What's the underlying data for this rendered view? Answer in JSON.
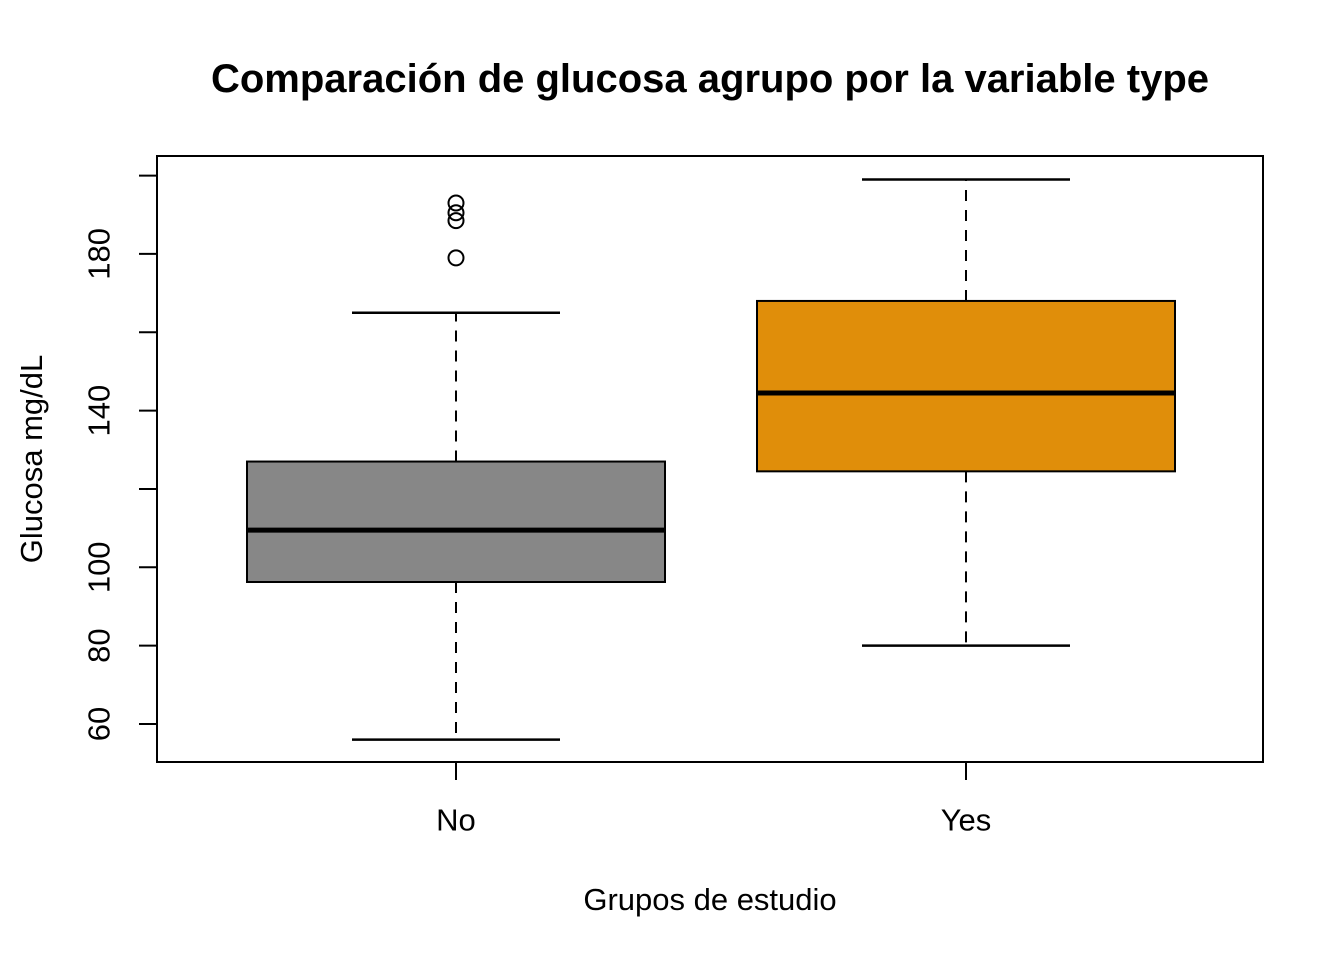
{
  "chart_data": {
    "type": "boxplot",
    "title": "Comparación de glucosa agrupo por la variable type",
    "xlabel": "Grupos de estudio",
    "ylabel": "Glucosa mg/dL",
    "ylim": [
      50.3,
      205.0
    ],
    "grid": "off",
    "legend": "none",
    "y_ticks": [
      60,
      80,
      100,
      120,
      140,
      160,
      180,
      200
    ],
    "y_tick_labels": [
      {
        "value": 60,
        "label": "60"
      },
      {
        "value": 80,
        "label": "80"
      },
      {
        "value": 100,
        "label": "100"
      },
      {
        "value": 140,
        "label": "140"
      },
      {
        "value": 180,
        "label": "180"
      }
    ],
    "x_categories": [
      "No",
      "Yes"
    ],
    "groups": [
      {
        "label": "No",
        "fill": "#878787",
        "whisker_low": 56,
        "q1": 96.25,
        "median": 109.5,
        "q3": 127,
        "whisker_high": 165,
        "outliers": [
          179,
          188.5,
          190.5,
          193
        ]
      },
      {
        "label": "Yes",
        "fill": "#E08E0A",
        "whisker_low": 80,
        "q1": 124.5,
        "median": 144.5,
        "q3": 168,
        "whisker_high": 199,
        "outliers": []
      }
    ]
  },
  "colors": {
    "line": "#000000",
    "background": "#FFFFFF",
    "box_no": "#878787",
    "box_yes": "#E08E0A"
  }
}
